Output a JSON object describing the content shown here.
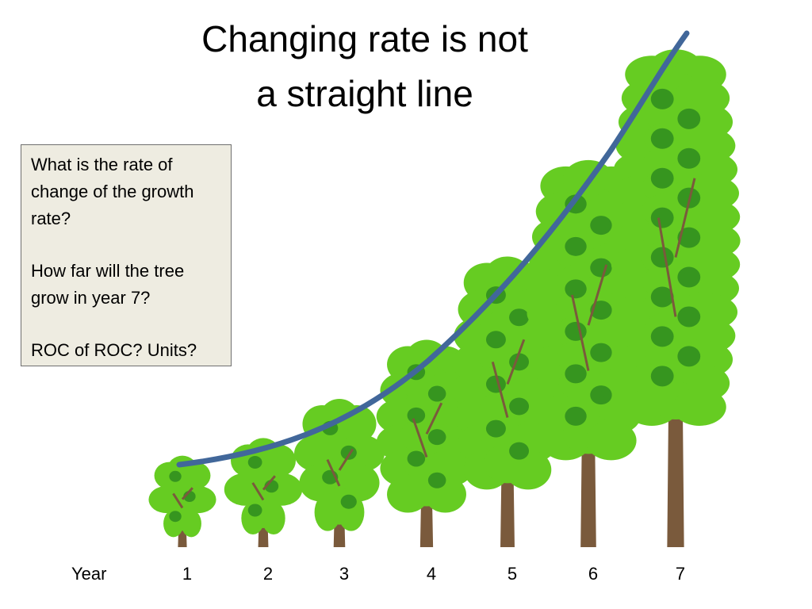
{
  "slide": {
    "title_line_1": "Changing rate is not",
    "title_line_2": "a straight line"
  },
  "question_box": {
    "q1": "What is the rate of change of the growth rate?",
    "q2": "How far will the tree grow in year 7?",
    "q3": "ROC of ROC?  Units?"
  },
  "colors": {
    "curve": "#41679a",
    "foliage_light": "#66cc22",
    "foliage_dark": "#2e8b1e",
    "trunk": "#7a5a3c",
    "box_fill": "#eeece1"
  },
  "chart_data": {
    "type": "diagram",
    "xlabel": "Year",
    "categories": [
      "1",
      "2",
      "3",
      "4",
      "5",
      "6",
      "7"
    ],
    "trees": [
      {
        "year": "1",
        "relative_height": 1.0
      },
      {
        "year": "2",
        "relative_height": 1.2
      },
      {
        "year": "3",
        "relative_height": 1.7
      },
      {
        "year": "4",
        "relative_height": 2.5
      },
      {
        "year": "5",
        "relative_height": 3.6
      },
      {
        "year": "6",
        "relative_height": 4.9
      },
      {
        "year": "7",
        "relative_height": 6.4
      }
    ]
  }
}
